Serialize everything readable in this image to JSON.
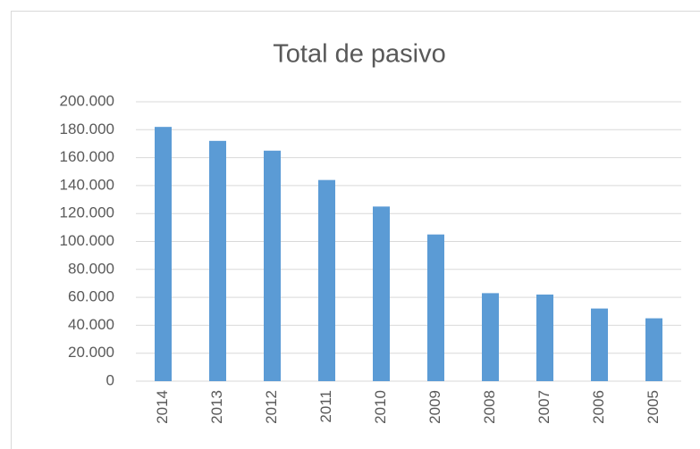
{
  "chart_data": {
    "type": "bar",
    "title": "Total de pasivo",
    "categories": [
      "2014",
      "2013",
      "2012",
      "2011",
      "2010",
      "2009",
      "2008",
      "2007",
      "2006",
      "2005"
    ],
    "values": [
      182000,
      172000,
      165000,
      144000,
      125000,
      105000,
      63000,
      62000,
      52000,
      45000
    ],
    "color": "#5b9bd5",
    "ylim": [
      0,
      200000
    ],
    "yticks": [
      0,
      {
        "value": 20000,
        "label": "20.000"
      },
      {
        "value": 40000,
        "label": "40.000"
      },
      {
        "value": 60000,
        "label": "60.000"
      },
      {
        "value": 80000,
        "label": "80.000"
      },
      {
        "value": 100000,
        "label": "100.000"
      },
      {
        "value": 120000,
        "label": "120.000"
      },
      {
        "value": 140000,
        "label": "140.000"
      },
      {
        "value": 160000,
        "label": "160.000"
      },
      {
        "value": 180000,
        "label": "180.000"
      },
      {
        "value": 200000,
        "label": "200.000"
      }
    ],
    "grid": true
  }
}
